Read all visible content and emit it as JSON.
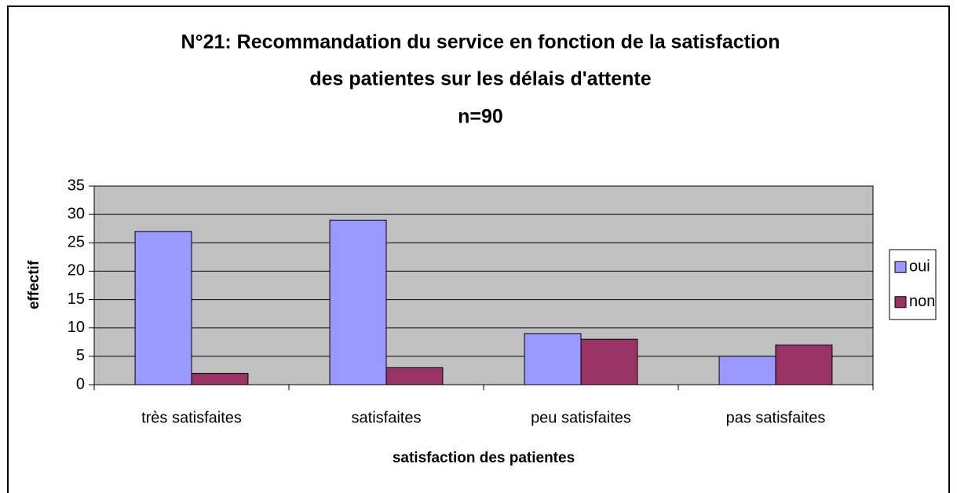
{
  "chart_data": {
    "type": "bar",
    "title": [
      "N°21: Recommandation du service en fonction de la satisfaction",
      "des patientes sur les délais d'attente",
      "n=90"
    ],
    "x_label": "satisfaction des patientes",
    "y_label": "effectif",
    "categories": [
      "très satisfaites",
      "satisfaites",
      "peu satisfaites",
      "pas satisfaites"
    ],
    "series": [
      {
        "name": "oui",
        "color": "#9999ff",
        "values": [
          27,
          29,
          9,
          5
        ]
      },
      {
        "name": "non",
        "color": "#993366",
        "values": [
          2,
          3,
          8,
          7
        ]
      }
    ],
    "ylim": [
      0,
      35
    ],
    "yticks": [
      0,
      5,
      10,
      15,
      20,
      25,
      30,
      35
    ],
    "grid": true,
    "legend": "right",
    "plot_background": "#c0c0c0"
  }
}
